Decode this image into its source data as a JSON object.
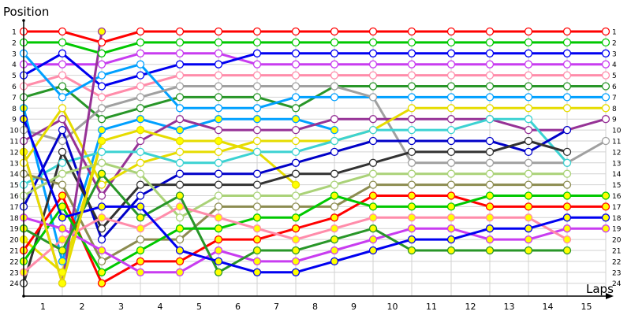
{
  "chart_data": {
    "type": "line",
    "title": "",
    "ylabel": "Position",
    "xlabel": "Laps",
    "y_ticks": [
      "1",
      "2",
      "3",
      "4",
      "5",
      "6",
      "7",
      "8",
      "9",
      "10",
      "11",
      "12",
      "13",
      "14",
      "15",
      "16",
      "17",
      "18",
      "19",
      "20",
      "21",
      "22",
      "23",
      "24"
    ],
    "x_ticks": [
      "1",
      "2",
      "3",
      "4",
      "5",
      "6",
      "7",
      "8",
      "9",
      "10",
      "11",
      "12",
      "13",
      "14",
      "15"
    ],
    "ylim": [
      1,
      24
    ],
    "y_inverted": true,
    "grid": true,
    "x_columns": [
      0,
      1,
      2,
      3,
      4,
      5,
      6,
      7,
      8,
      9,
      10,
      11,
      12,
      13,
      14,
      15
    ],
    "series": [
      {
        "name": "red",
        "color": "#ff0000",
        "node": "white",
        "values": [
          1,
          1,
          2,
          1,
          1,
          1,
          1,
          1,
          1,
          1,
          1,
          1,
          1,
          1,
          1,
          1
        ]
      },
      {
        "name": "green",
        "color": "#00c800",
        "node": "white",
        "values": [
          2,
          2,
          3,
          2,
          2,
          2,
          2,
          2,
          2,
          2,
          2,
          2,
          2,
          2,
          2,
          2
        ]
      },
      {
        "name": "magenta",
        "color": "#c83cf0",
        "node": "white",
        "values": [
          4,
          4,
          4,
          3,
          3,
          3,
          4,
          4,
          4,
          4,
          4,
          4,
          4,
          4,
          4,
          4
        ]
      },
      {
        "name": "blue",
        "color": "#0000f0",
        "node": "white",
        "values": [
          5,
          3,
          6,
          5,
          4,
          4,
          3,
          3,
          3,
          3,
          3,
          3,
          3,
          3,
          3,
          3
        ]
      },
      {
        "name": "pink",
        "color": "#ff8caa",
        "node": "white",
        "values": [
          6,
          5,
          7,
          6,
          5,
          5,
          5,
          5,
          5,
          5,
          5,
          5,
          5,
          5,
          5,
          5
        ]
      },
      {
        "name": "dark-green",
        "color": "#289628",
        "node": "white",
        "values": [
          7,
          6,
          9,
          8,
          7,
          7,
          7,
          8,
          6,
          6,
          6,
          6,
          6,
          6,
          6,
          6
        ]
      },
      {
        "name": "sky-blue",
        "color": "#00a0ff",
        "node": "white",
        "values": [
          3,
          7,
          5,
          4,
          8,
          8,
          8,
          7,
          7,
          7,
          7,
          7,
          7,
          7,
          7,
          7
        ]
      },
      {
        "name": "gray",
        "color": "#a0a0a0",
        "node": "white",
        "values": [
          10,
          11,
          8,
          7,
          6,
          6,
          6,
          6,
          6,
          7,
          13,
          13,
          13,
          13,
          13,
          11
        ]
      },
      {
        "name": "sky-blue-yellow",
        "color": "#00a0ff",
        "node": "yellow",
        "values": [
          8,
          22,
          10,
          9,
          10,
          9,
          9,
          9,
          10
        ]
      },
      {
        "name": "purple",
        "color": "#963296",
        "node": "white",
        "values": [
          11,
          9,
          16,
          11,
          9,
          10,
          10,
          10,
          9,
          9,
          9,
          9,
          9,
          10,
          10,
          9
        ]
      },
      {
        "name": "yellow",
        "color": "#e6dc00",
        "node": "white",
        "values": [
          13,
          8,
          15,
          13,
          12,
          12,
          11,
          11,
          11,
          10,
          8,
          8,
          8,
          8,
          8,
          8
        ]
      },
      {
        "name": "yellow-filled",
        "color": "#e6dc00",
        "node": "yellow",
        "values": [
          20,
          23,
          11,
          10,
          11,
          11,
          12,
          15
        ]
      },
      {
        "name": "cyan",
        "color": "#3cd2d2",
        "node": "white",
        "values": [
          15,
          13,
          12,
          12,
          13,
          13,
          12,
          12,
          11,
          10,
          10,
          10,
          9,
          9,
          13
        ]
      },
      {
        "name": "navy",
        "color": "#0000c8",
        "node": "white",
        "values": [
          17,
          10,
          20,
          16,
          14,
          14,
          14,
          13,
          12,
          11,
          11,
          11,
          11,
          12,
          10
        ]
      },
      {
        "name": "black",
        "color": "#323232",
        "node": "white",
        "values": [
          24,
          12,
          19,
          15,
          15,
          15,
          15,
          14,
          14,
          13,
          12,
          12,
          12,
          11,
          12
        ]
      },
      {
        "name": "olive",
        "color": "#8c8c50",
        "node": "white",
        "values": [
          14,
          15,
          22,
          20,
          20,
          17,
          17,
          17,
          17,
          15,
          15,
          15,
          15,
          15,
          15
        ]
      },
      {
        "name": "light-green",
        "color": "#aad278",
        "node": "white",
        "values": [
          16,
          14,
          13,
          14,
          18,
          16,
          16,
          16,
          15,
          14,
          14,
          14,
          14,
          14,
          14
        ]
      },
      {
        "name": "purple-yellow",
        "color": "#963296",
        "node": "yellow",
        "values": [
          12,
          24,
          1
        ]
      },
      {
        "name": "red-yellow",
        "color": "#ff0000",
        "node": "yellow",
        "values": [
          21,
          16,
          24,
          22,
          22,
          20,
          20,
          19,
          18,
          16,
          16,
          16,
          17,
          17,
          17,
          17
        ]
      },
      {
        "name": "green-yellow",
        "color": "#00c800",
        "node": "yellow",
        "values": [
          22,
          17,
          23,
          21,
          19,
          19,
          18,
          18,
          16,
          17,
          17,
          17,
          16,
          16,
          16,
          16
        ]
      },
      {
        "name": "magenta-yellow",
        "color": "#c83cf0",
        "node": "yellow",
        "values": [
          18,
          19,
          21,
          23,
          23,
          21,
          22,
          22,
          21,
          20,
          19,
          19,
          20,
          20,
          19,
          19
        ]
      },
      {
        "name": "pink-yellow",
        "color": "#ff8caa",
        "node": "yellow",
        "values": [
          23,
          20,
          18,
          19,
          17,
          18,
          19,
          20,
          19,
          18,
          18,
          18,
          18,
          18,
          20
        ]
      },
      {
        "name": "dark-green-yellow",
        "color": "#289628",
        "node": "yellow",
        "values": [
          19,
          21,
          14,
          18,
          16,
          23,
          21,
          21,
          20,
          19,
          21,
          21,
          21,
          21,
          21
        ]
      },
      {
        "name": "blue-yellow",
        "color": "#0000f0",
        "node": "yellow",
        "values": [
          9,
          18,
          17,
          17,
          21,
          22,
          23,
          23,
          22,
          21,
          20,
          20,
          19,
          19,
          18,
          18
        ]
      },
      {
        "name": "yellow-yellow2",
        "color": "#e6dc00",
        "node": "yellow",
        "values": [
          12,
          24,
          11
        ]
      }
    ]
  }
}
